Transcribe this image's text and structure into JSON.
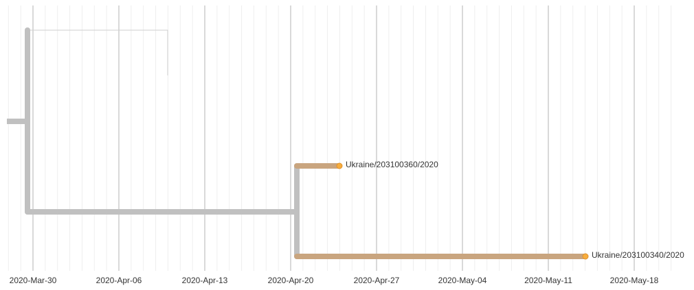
{
  "axis": {
    "ticks": [
      "2020-Mar-30",
      "2020-Apr-06",
      "2020-Apr-13",
      "2020-Apr-20",
      "2020-Apr-27",
      "2020-May-04",
      "2020-May-11",
      "2020-May-18"
    ]
  },
  "tips": [
    {
      "label": "Ukraine/203100360/2020"
    },
    {
      "label": "Ukraine/203100340/2020"
    }
  ]
}
